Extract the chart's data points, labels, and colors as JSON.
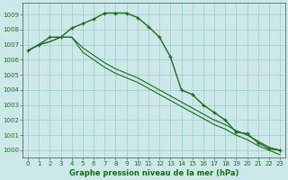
{
  "xlabel": "Graphe pression niveau de la mer (hPa)",
  "bg_color": "#cce8e8",
  "grid_color": "#99cccc",
  "line_color": "#1a6b1a",
  "ylim": [
    999.5,
    1009.8
  ],
  "xlim": [
    -0.5,
    23.5
  ],
  "yticks": [
    1000,
    1001,
    1002,
    1003,
    1004,
    1005,
    1006,
    1007,
    1008,
    1009
  ],
  "xticks": [
    0,
    1,
    2,
    3,
    4,
    5,
    6,
    7,
    8,
    9,
    10,
    11,
    12,
    13,
    14,
    15,
    16,
    17,
    18,
    19,
    20,
    21,
    22,
    23
  ],
  "line1": [
    1006.6,
    1007.0,
    1007.5,
    1007.5,
    1008.1,
    1008.4,
    1008.7,
    1009.1,
    1009.1,
    1009.1,
    1008.8,
    1008.2,
    1007.5,
    1006.2,
    1004.0,
    1003.7,
    1003.0,
    1002.5,
    1002.0,
    1001.2,
    1001.1,
    1000.5,
    1000.1,
    1000.0
  ],
  "line2": [
    1006.6,
    1007.0,
    1007.2,
    1007.5,
    1007.5,
    1006.8,
    1006.3,
    1005.8,
    1005.4,
    1005.1,
    1004.8,
    1004.4,
    1004.0,
    1003.6,
    1003.2,
    1002.8,
    1002.4,
    1002.0,
    1001.7,
    1001.3,
    1001.0,
    1000.6,
    1000.2,
    1000.0
  ],
  "line3": [
    1006.6,
    1007.0,
    1007.2,
    1007.5,
    1007.5,
    1006.5,
    1006.0,
    1005.5,
    1005.1,
    1004.8,
    1004.5,
    1004.1,
    1003.7,
    1003.3,
    1002.9,
    1002.5,
    1002.1,
    1001.7,
    1001.4,
    1001.0,
    1000.7,
    1000.3,
    1000.0,
    999.7
  ],
  "tick_fontsize": 5.0,
  "xlabel_fontsize": 6.0,
  "lw_main": 1.0,
  "lw_sub": 0.8,
  "marker_size": 3.5
}
